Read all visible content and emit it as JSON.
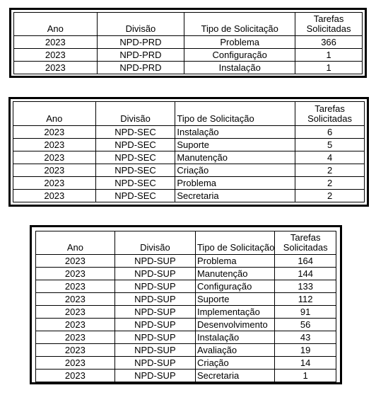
{
  "tables": [
    {
      "headers": {
        "ano": "Ano",
        "divisao": "Divisão",
        "tipo": "Tipo de Solicitação",
        "tarefas_1": "Tarefas",
        "tarefas_2": "Solicitadas"
      },
      "rows": [
        [
          "2023",
          "NPD-PRD",
          "Problema",
          "366"
        ],
        [
          "2023",
          "NPD-PRD",
          "Configuração",
          "1"
        ],
        [
          "2023",
          "NPD-PRD",
          "Instalação",
          "1"
        ]
      ]
    },
    {
      "headers": {
        "ano": "Ano",
        "divisao": "Divisão",
        "tipo": "Tipo de Solicitação",
        "tarefas_1": "Tarefas",
        "tarefas_2": "Solicitadas"
      },
      "rows": [
        [
          "2023",
          "NPD-SEC",
          "Instalação",
          "6"
        ],
        [
          "2023",
          "NPD-SEC",
          "Suporte",
          "5"
        ],
        [
          "2023",
          "NPD-SEC",
          "Manutenção",
          "4"
        ],
        [
          "2023",
          "NPD-SEC",
          "Criação",
          "2"
        ],
        [
          "2023",
          "NPD-SEC",
          "Problema",
          "2"
        ],
        [
          "2023",
          "NPD-SEC",
          "Secretaria",
          "2"
        ]
      ]
    },
    {
      "headers": {
        "ano": "Ano",
        "divisao": "Divisão",
        "tipo": "Tipo de Solicitação",
        "tarefas_1": "Tarefas",
        "tarefas_2": "Solicitadas"
      },
      "rows": [
        [
          "2023",
          "NPD-SUP",
          "Problema",
          "164"
        ],
        [
          "2023",
          "NPD-SUP",
          "Manutenção",
          "144"
        ],
        [
          "2023",
          "NPD-SUP",
          "Configuração",
          "133"
        ],
        [
          "2023",
          "NPD-SUP",
          "Suporte",
          "112"
        ],
        [
          "2023",
          "NPD-SUP",
          "Implementação",
          "91"
        ],
        [
          "2023",
          "NPD-SUP",
          "Desenvolvimento",
          "56"
        ],
        [
          "2023",
          "NPD-SUP",
          "Instalação",
          "43"
        ],
        [
          "2023",
          "NPD-SUP",
          "Avaliação",
          "19"
        ],
        [
          "2023",
          "NPD-SUP",
          "Criação",
          "14"
        ],
        [
          "2023",
          "NPD-SUP",
          "Secretaria",
          "1"
        ]
      ]
    }
  ]
}
